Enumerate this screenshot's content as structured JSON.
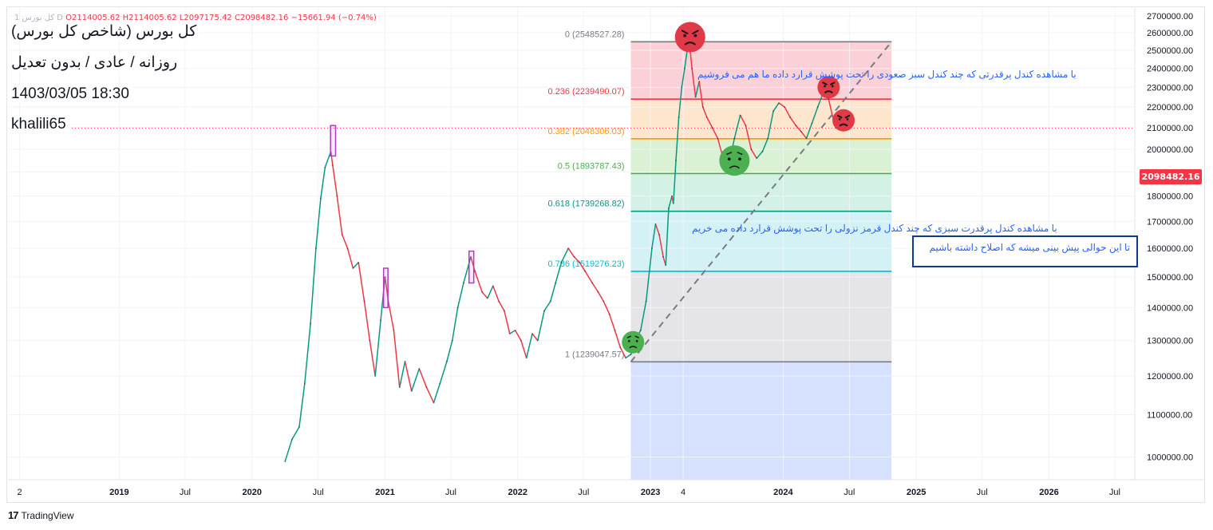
{
  "header": {
    "ohlc_prefix": "1 کل بورس D",
    "open": "O2114005.62",
    "high": "H2114005.62",
    "low": "L2097175.42",
    "close": "C2098482.16",
    "change": "−15661.94 (−0.74%)"
  },
  "info": {
    "symbol": "کل بورس (شاخص کل بورس)",
    "settings": "روزانه / عادی / بدون تعدیل",
    "datetime": "1403/03/05 18:30",
    "author": "khalili65"
  },
  "footer": {
    "brand": "TradingView",
    "logo_glyph": "17"
  },
  "last_price": {
    "label": "2098482.16",
    "value": 2098482.16,
    "color": "#f23645"
  },
  "notes": {
    "sell": "با مشاهده کندل پرقدرتی که چند کندل سبز صعودی را تحت پوشش قرارد داده ما هم می فروشیم",
    "buy": "با مشاهده کندل پرقدرت سبزی که چند کندل قرمز نزولی را تحت پوشش قرارد داده می خریم",
    "box": "تا این حوالی پیش بینی میشه که اصلاح داشته باشیم"
  },
  "chart_data": {
    "type": "line",
    "x_unit": "date",
    "y_scale": "log",
    "ylim": [
      950000,
      2750000
    ],
    "xlim": [
      "2018-03-01",
      "2026-08-25"
    ],
    "x_ticks": [
      {
        "date": "2018-04-02",
        "label": "2"
      },
      {
        "date": "2019-01-01",
        "label": "2019"
      },
      {
        "date": "2019-07-01",
        "label": "Jul"
      },
      {
        "date": "2020-01-01",
        "label": "2020"
      },
      {
        "date": "2020-07-01",
        "label": "Jul"
      },
      {
        "date": "2021-01-01",
        "label": "2021"
      },
      {
        "date": "2021-07-01",
        "label": "Jul"
      },
      {
        "date": "2022-01-01",
        "label": "2022"
      },
      {
        "date": "2022-07-01",
        "label": "Jul"
      },
      {
        "date": "2023-01-01",
        "label": "2023"
      },
      {
        "date": "2023-04-01",
        "label": "4"
      },
      {
        "date": "2024-01-01",
        "label": "2024"
      },
      {
        "date": "2024-07-01",
        "label": "Jul"
      },
      {
        "date": "2025-01-01",
        "label": "2025"
      },
      {
        "date": "2025-07-01",
        "label": "Jul"
      },
      {
        "date": "2026-01-01",
        "label": "2026"
      },
      {
        "date": "2026-07-01",
        "label": "Jul"
      }
    ],
    "y_ticks": [
      {
        "value": 1000000,
        "label": "1000000.00"
      },
      {
        "value": 1100000,
        "label": "1100000.00"
      },
      {
        "value": 1200000,
        "label": "1200000.00"
      },
      {
        "value": 1300000,
        "label": "1300000.00"
      },
      {
        "value": 1400000,
        "label": "1400000.00"
      },
      {
        "value": 1500000,
        "label": "1500000.00"
      },
      {
        "value": 1600000,
        "label": "1600000.00"
      },
      {
        "value": 1700000,
        "label": "1700000.00"
      },
      {
        "value": 1800000,
        "label": "1800000.00"
      },
      {
        "value": 1900000,
        "label": "1900000.00"
      },
      {
        "value": 2000000,
        "label": "2000000.00"
      },
      {
        "value": 2100000,
        "label": "2100000.00"
      },
      {
        "value": 2200000,
        "label": "2200000.00"
      },
      {
        "value": 2300000,
        "label": "2300000.00"
      },
      {
        "value": 2400000,
        "label": "2400000.00"
      },
      {
        "value": 2500000,
        "label": "2500000.00"
      },
      {
        "value": 2600000,
        "label": "2600000.00"
      },
      {
        "value": 2700000,
        "label": "2700000.00"
      }
    ],
    "series": [
      {
        "colors": {
          "up": "#089981",
          "down": "#f23645"
        },
        "points": [
          [
            "2020-04-01",
            990000
          ],
          [
            "2020-04-20",
            1040000
          ],
          [
            "2020-05-10",
            1070000
          ],
          [
            "2020-05-25",
            1180000
          ],
          [
            "2020-06-10",
            1350000
          ],
          [
            "2020-06-25",
            1600000
          ],
          [
            "2020-07-08",
            1790000
          ],
          [
            "2020-07-20",
            1920000
          ],
          [
            "2020-08-05",
            1990000
          ],
          [
            "2020-08-10",
            1930000
          ],
          [
            "2020-08-22",
            1800000
          ],
          [
            "2020-09-05",
            1650000
          ],
          [
            "2020-09-20",
            1600000
          ],
          [
            "2020-10-05",
            1530000
          ],
          [
            "2020-10-20",
            1550000
          ],
          [
            "2020-11-05",
            1420000
          ],
          [
            "2020-11-20",
            1300000
          ],
          [
            "2020-12-05",
            1200000
          ],
          [
            "2020-12-20",
            1360000
          ],
          [
            "2021-01-01",
            1500000
          ],
          [
            "2021-01-10",
            1420000
          ],
          [
            "2021-01-25",
            1330000
          ],
          [
            "2021-02-10",
            1170000
          ],
          [
            "2021-02-25",
            1240000
          ],
          [
            "2021-03-15",
            1160000
          ],
          [
            "2021-04-05",
            1220000
          ],
          [
            "2021-04-25",
            1170000
          ],
          [
            "2021-05-15",
            1130000
          ],
          [
            "2021-06-01",
            1180000
          ],
          [
            "2021-06-20",
            1240000
          ],
          [
            "2021-07-05",
            1300000
          ],
          [
            "2021-07-20",
            1400000
          ],
          [
            "2021-08-05",
            1480000
          ],
          [
            "2021-08-25",
            1570000
          ],
          [
            "2021-09-05",
            1520000
          ],
          [
            "2021-09-25",
            1450000
          ],
          [
            "2021-10-10",
            1430000
          ],
          [
            "2021-10-25",
            1470000
          ],
          [
            "2021-11-10",
            1420000
          ],
          [
            "2021-11-25",
            1390000
          ],
          [
            "2021-12-10",
            1320000
          ],
          [
            "2021-12-25",
            1330000
          ],
          [
            "2022-01-10",
            1300000
          ],
          [
            "2022-01-25",
            1250000
          ],
          [
            "2022-02-10",
            1320000
          ],
          [
            "2022-02-25",
            1300000
          ],
          [
            "2022-03-15",
            1390000
          ],
          [
            "2022-04-01",
            1420000
          ],
          [
            "2022-04-15",
            1480000
          ],
          [
            "2022-05-01",
            1550000
          ],
          [
            "2022-05-20",
            1600000
          ],
          [
            "2022-06-05",
            1570000
          ],
          [
            "2022-06-20",
            1550000
          ],
          [
            "2022-07-05",
            1520000
          ],
          [
            "2022-07-25",
            1480000
          ],
          [
            "2022-08-10",
            1450000
          ],
          [
            "2022-08-25",
            1420000
          ],
          [
            "2022-09-10",
            1380000
          ],
          [
            "2022-09-25",
            1330000
          ],
          [
            "2022-10-10",
            1280000
          ],
          [
            "2022-10-25",
            1250000
          ],
          [
            "2022-11-08",
            1260000
          ],
          [
            "2022-11-20",
            1300000
          ],
          [
            "2022-12-05",
            1330000
          ],
          [
            "2022-12-20",
            1420000
          ],
          [
            "2023-01-05",
            1600000
          ],
          [
            "2023-01-15",
            1690000
          ],
          [
            "2023-01-25",
            1650000
          ],
          [
            "2023-02-05",
            1570000
          ],
          [
            "2023-02-12",
            1540000
          ],
          [
            "2023-02-20",
            1750000
          ],
          [
            "2023-03-01",
            1800000
          ],
          [
            "2023-03-05",
            1770000
          ],
          [
            "2023-03-12",
            1950000
          ],
          [
            "2023-03-20",
            2150000
          ],
          [
            "2023-03-28",
            2300000
          ],
          [
            "2023-04-05",
            2400000
          ],
          [
            "2023-04-12",
            2500000
          ],
          [
            "2023-04-18",
            2548527
          ],
          [
            "2023-04-25",
            2400000
          ],
          [
            "2023-05-05",
            2250000
          ],
          [
            "2023-05-15",
            2330000
          ],
          [
            "2023-05-25",
            2200000
          ],
          [
            "2023-06-05",
            2150000
          ],
          [
            "2023-06-20",
            2100000
          ],
          [
            "2023-07-05",
            2050000
          ],
          [
            "2023-07-20",
            1960000
          ],
          [
            "2023-08-05",
            1940000
          ],
          [
            "2023-08-20",
            2050000
          ],
          [
            "2023-09-05",
            2160000
          ],
          [
            "2023-09-20",
            2110000
          ],
          [
            "2023-10-05",
            2000000
          ],
          [
            "2023-10-20",
            1960000
          ],
          [
            "2023-11-05",
            1990000
          ],
          [
            "2023-11-20",
            2050000
          ],
          [
            "2023-12-05",
            2180000
          ],
          [
            "2023-12-20",
            2220000
          ],
          [
            "2024-01-05",
            2200000
          ],
          [
            "2024-01-20",
            2150000
          ],
          [
            "2024-02-05",
            2110000
          ],
          [
            "2024-02-20",
            2080000
          ],
          [
            "2024-03-05",
            2050000
          ],
          [
            "2024-03-20",
            2120000
          ],
          [
            "2024-04-05",
            2200000
          ],
          [
            "2024-04-20",
            2270000
          ],
          [
            "2024-05-05",
            2239000
          ],
          [
            "2024-05-15",
            2160000
          ],
          [
            "2024-05-25",
            2098482
          ]
        ]
      }
    ],
    "fib_levels": [
      {
        "ratio": "0",
        "value": 2548527.28,
        "label": "0 (2548527.28)",
        "line_color": "#787b86",
        "label_color": "#787b86",
        "fill": "#f8c9cf"
      },
      {
        "ratio": "0.236",
        "value": 2239490.07,
        "label": "0.236 (2239490.07)",
        "line_color": "#f23645",
        "label_color": "#f23645",
        "fill": "#fde2c2"
      },
      {
        "ratio": "0.382",
        "value": 2048306.03,
        "label": "0.382 (2048306.03)",
        "line_color": "#ff9800",
        "label_color": "#ff9800",
        "fill": "#d4eecc"
      },
      {
        "ratio": "0.5",
        "value": 1893787.43,
        "label": "0.5 (1893787.43)",
        "line_color": "#4caf50",
        "label_color": "#4caf50",
        "fill": "#cdeee0"
      },
      {
        "ratio": "0.618",
        "value": 1739268.82,
        "label": "0.618 (1739268.82)",
        "line_color": "#089981",
        "label_color": "#089981",
        "fill": "#ccf0f3"
      },
      {
        "ratio": "0.786",
        "value": 1519276.23,
        "label": "0.786 (1519276.23)",
        "line_color": "#00bcd4",
        "label_color": "#00bcd4",
        "fill": "#e0e1e4"
      },
      {
        "ratio": "1",
        "value": 1239047.57,
        "label": "1 (1239047.57)",
        "line_color": "#787b86",
        "label_color": "#787b86",
        "fill": "#cfdcff"
      }
    ],
    "fib_span": [
      "2022-11-08",
      "2024-10-25"
    ],
    "fib_bottom_fill": 950000,
    "trend_line": [
      [
        "2022-11-08",
        1239047.57
      ],
      [
        "2024-10-25",
        2548527.28
      ]
    ],
    "highlight_boxes": [
      {
        "x": [
          "2020-08-04",
          "2020-08-18"
        ],
        "y": [
          1970000,
          2110000
        ]
      },
      {
        "x": [
          "2020-12-28",
          "2021-01-09"
        ],
        "y": [
          1400000,
          1530000
        ]
      },
      {
        "x": [
          "2021-08-20",
          "2021-09-02"
        ],
        "y": [
          1480000,
          1590000
        ]
      }
    ],
    "markers": [
      {
        "date": "2023-04-20",
        "value": 2575000,
        "mood": "angry",
        "color": "#e03a48"
      },
      {
        "date": "2024-05-05",
        "value": 2300000,
        "mood": "angry",
        "color": "#e03a48"
      },
      {
        "date": "2024-06-15",
        "value": 2135000,
        "mood": "angry",
        "color": "#e03a48"
      },
      {
        "date": "2023-08-20",
        "value": 1950000,
        "mood": "sad",
        "color": "#4caf50"
      },
      {
        "date": "2022-11-14",
        "value": 1295000,
        "mood": "sad",
        "color": "#4caf50"
      }
    ]
  }
}
